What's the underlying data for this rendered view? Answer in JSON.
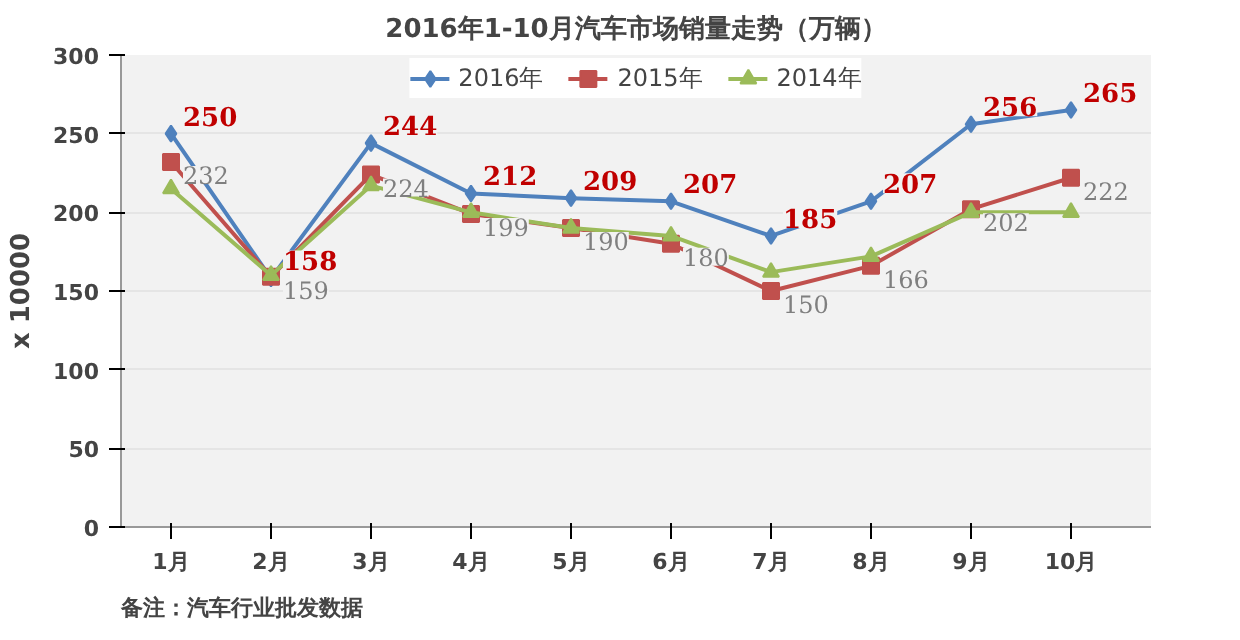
{
  "chart_data": {
    "type": "line",
    "title": "2016年1-10月汽车市场销量走势（万辆）",
    "ylabel": "x 10000",
    "categories": [
      "1月",
      "2月",
      "3月",
      "4月",
      "5月",
      "6月",
      "7月",
      "8月",
      "9月",
      "10月"
    ],
    "series": [
      {
        "name": "2016年",
        "color": "#4f81bd",
        "marker": "diamond",
        "values": [
          250,
          158,
          244,
          212,
          209,
          207,
          185,
          207,
          256,
          265
        ],
        "value_labels": [
          "250",
          "158",
          "244",
          "212",
          "209",
          "207",
          "185",
          "207",
          "256",
          "265"
        ]
      },
      {
        "name": "2015年",
        "color": "#c0504d",
        "marker": "square",
        "values": [
          232,
          159,
          224,
          199,
          190,
          180,
          150,
          166,
          202,
          222
        ],
        "value_labels": [
          "232",
          "159",
          "224",
          "199",
          "190",
          "180",
          "150",
          "166",
          "202",
          "222"
        ]
      },
      {
        "name": "2014年",
        "color": "#9bbb59",
        "marker": "triangle",
        "values": [
          215,
          160,
          217,
          200,
          190,
          185,
          162,
          172,
          200,
          200
        ]
      }
    ],
    "ylim": [
      0,
      300
    ],
    "yticks": [
      0,
      50,
      100,
      150,
      200,
      250,
      300
    ],
    "grid": "y",
    "legend": "top",
    "line_style": "solid",
    "annotations": [
      "备注：汽车行业批发数据"
    ]
  }
}
